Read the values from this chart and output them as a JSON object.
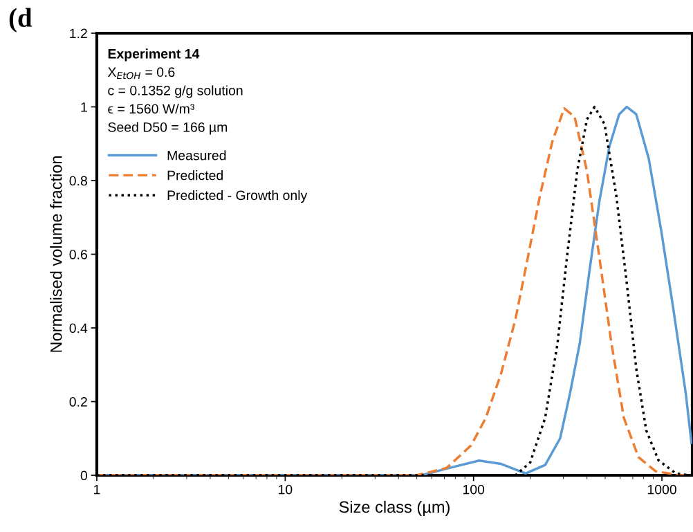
{
  "chart_data": {
    "type": "line",
    "xlabel": "Size class (µm)",
    "ylabel": "Normalised volume fraction",
    "log": "x",
    "xlim": [
      1,
      1450
    ],
    "xticks": [
      1,
      10,
      100,
      1000
    ],
    "ylim": [
      0,
      1.2
    ],
    "yticks": [
      0,
      0.2,
      0.4,
      0.6,
      0.8,
      1,
      1.2
    ],
    "grid": false,
    "legend": "top left",
    "marker": "none",
    "annotations": [
      "(d",
      "Experiment 14",
      "X$_{EtOH}$ = 0.6",
      "c = 0.1352 g/g solution",
      "ϵ = 1560 W/m³",
      "Seed D50 = 166 µm"
    ],
    "series": [
      {
        "name": "Measured",
        "color": "#5b9bd5",
        "line_style": "solid",
        "x": [
          1,
          10,
          30,
          53,
          72,
          107,
          140,
          189,
          240,
          288,
          325,
          366,
          413,
          466,
          526,
          593,
          650,
          731,
          851,
          991,
          1151,
          1339,
          1435
        ],
        "values": [
          0,
          0,
          0,
          0,
          0.018,
          0.04,
          0.031,
          0.005,
          0.028,
          0.1,
          0.222,
          0.357,
          0.557,
          0.745,
          0.892,
          0.98,
          1.0,
          0.98,
          0.86,
          0.665,
          0.45,
          0.222,
          0.088
        ]
      },
      {
        "name": "Predicted",
        "color": "#ed7d31",
        "line_style": "dashed",
        "x": [
          1,
          10,
          30,
          50,
          72,
          97,
          116,
          140,
          167,
          194,
          225,
          262,
          303,
          344,
          400,
          466,
          540,
          628,
          751,
          926,
          1254,
          1450
        ],
        "values": [
          0,
          0,
          0,
          0,
          0.02,
          0.081,
          0.155,
          0.276,
          0.424,
          0.59,
          0.758,
          0.906,
          0.996,
          0.973,
          0.826,
          0.59,
          0.357,
          0.156,
          0.049,
          0.011,
          0,
          0
        ]
      },
      {
        "name": "Predicted - Growth only",
        "color": "#000000",
        "line_style": "dotted",
        "x": [
          1,
          10,
          100,
          167,
          200,
          240,
          279,
          313,
          355,
          400,
          439,
          496,
          573,
          650,
          731,
          826,
          958,
          1185,
          1400,
          1450
        ],
        "values": [
          0,
          0,
          0,
          0,
          0.035,
          0.156,
          0.357,
          0.59,
          0.826,
          0.966,
          1.0,
          0.953,
          0.758,
          0.524,
          0.289,
          0.122,
          0.041,
          0.005,
          0,
          0
        ]
      }
    ]
  }
}
